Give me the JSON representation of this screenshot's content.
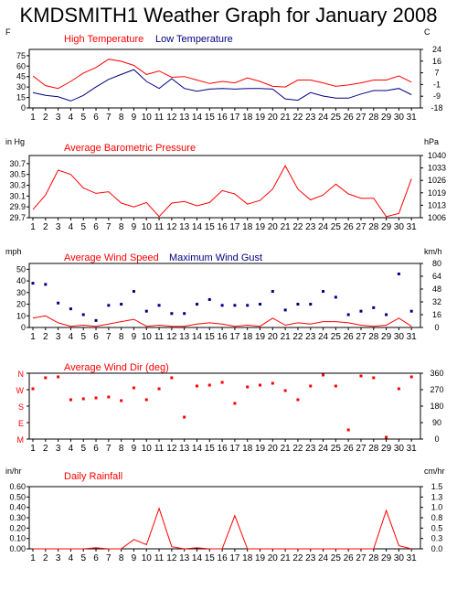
{
  "title": "KMDSMITH1 Weather Graph for January 2008",
  "x_days": [
    1,
    2,
    3,
    4,
    5,
    6,
    7,
    8,
    9,
    10,
    11,
    12,
    13,
    14,
    15,
    16,
    17,
    18,
    19,
    20,
    21,
    22,
    23,
    24,
    25,
    26,
    27,
    28,
    29,
    30,
    31
  ],
  "colors": {
    "red": "#ff0000",
    "blue": "#000080",
    "frame": "#000000"
  },
  "chart_data": [
    {
      "type": "line",
      "title": "",
      "xlabel": "",
      "ylabel": "F",
      "y2label": "C",
      "legend": [
        "High Temperature",
        "Low Temperature"
      ],
      "yticks": [
        "0",
        "15",
        "30",
        "45",
        "60",
        "75"
      ],
      "y2ticks": [
        "-18",
        "-9",
        "-1",
        "7",
        "16",
        "24"
      ],
      "ylim": [
        0,
        84
      ],
      "x": [
        1,
        2,
        3,
        4,
        5,
        6,
        7,
        8,
        9,
        10,
        11,
        12,
        13,
        14,
        15,
        16,
        17,
        18,
        19,
        20,
        21,
        22,
        23,
        24,
        25,
        26,
        27,
        28,
        29,
        30,
        31
      ],
      "series": [
        {
          "name": "High Temperature",
          "color": "#ff0000",
          "values": [
            46,
            32,
            28,
            38,
            50,
            58,
            70,
            67,
            61,
            48,
            53,
            44,
            45,
            40,
            35,
            38,
            36,
            43,
            38,
            31,
            30,
            40,
            40,
            36,
            31,
            33,
            36,
            40,
            40,
            46,
            37
          ]
        },
        {
          "name": "Low Temperature",
          "color": "#000080",
          "values": [
            22,
            18,
            16,
            10,
            18,
            30,
            41,
            48,
            55,
            38,
            28,
            42,
            28,
            24,
            27,
            28,
            27,
            28,
            28,
            27,
            13,
            11,
            22,
            17,
            14,
            14,
            20,
            25,
            25,
            28,
            19
          ]
        }
      ]
    },
    {
      "type": "line",
      "title": "",
      "ylabel": "in Hg",
      "y2label": "hPa",
      "legend": [
        "Average Barometric Pressure"
      ],
      "yticks": [
        "29.7",
        "29.9",
        "30.1",
        "30.3",
        "30.5",
        "30.7"
      ],
      "y2ticks": [
        "1006",
        "1013",
        "1019",
        "1026",
        "1033",
        "1040"
      ],
      "ylim": [
        29.7,
        30.85
      ],
      "x": [
        1,
        2,
        3,
        4,
        5,
        6,
        7,
        8,
        9,
        10,
        11,
        12,
        13,
        14,
        15,
        16,
        17,
        18,
        19,
        20,
        21,
        22,
        23,
        24,
        25,
        26,
        27,
        28,
        29,
        30,
        31
      ],
      "series": [
        {
          "name": "Average Barometric Pressure",
          "color": "#ff0000",
          "values": [
            29.85,
            30.12,
            30.58,
            30.5,
            30.25,
            30.15,
            30.18,
            29.97,
            29.9,
            29.98,
            29.72,
            29.97,
            30.0,
            29.92,
            29.98,
            30.2,
            30.14,
            29.95,
            30.02,
            30.23,
            30.66,
            30.23,
            30.03,
            30.12,
            30.32,
            30.14,
            30.06,
            30.06,
            29.72,
            29.78,
            30.42
          ]
        }
      ]
    },
    {
      "type": "line",
      "title": "",
      "ylabel": "mph",
      "y2label": "km/h",
      "legend": [
        "Average Wind Speed",
        "Maximum Wind Gust"
      ],
      "yticks": [
        "0",
        "10",
        "20",
        "30",
        "40",
        "50"
      ],
      "y2ticks": [
        "0",
        "16",
        "32",
        "48",
        "64",
        "80"
      ],
      "ylim": [
        0,
        55
      ],
      "x": [
        1,
        2,
        3,
        4,
        5,
        6,
        7,
        8,
        9,
        10,
        11,
        12,
        13,
        14,
        15,
        16,
        17,
        18,
        19,
        20,
        21,
        22,
        23,
        24,
        25,
        26,
        27,
        28,
        29,
        30,
        31
      ],
      "series": [
        {
          "name": "Average Wind Speed",
          "color": "#ff0000",
          "style": "line",
          "values": [
            8,
            10,
            4,
            1,
            2,
            1,
            3,
            5,
            7,
            1,
            2,
            1,
            1,
            3,
            4,
            3,
            1,
            2,
            1,
            8,
            2,
            4,
            3,
            5,
            5,
            4,
            2,
            1,
            2,
            8,
            1
          ]
        },
        {
          "name": "Maximum Wind Gust",
          "color": "#000080",
          "style": "markers",
          "values": [
            38,
            37,
            21,
            16,
            11,
            6,
            19,
            20,
            31,
            14,
            19,
            12,
            12,
            20,
            24,
            19,
            19,
            19,
            20,
            31,
            15,
            20,
            20,
            31,
            26,
            11,
            14,
            17,
            11,
            46,
            14
          ]
        }
      ]
    },
    {
      "type": "scatter",
      "title": "",
      "ylabel": "",
      "y2label": "",
      "legend": [
        "Average Wind Dir (deg)"
      ],
      "yticks": [
        "M",
        "E",
        "S",
        "W",
        "N"
      ],
      "y2ticks": [
        "0",
        "90",
        "180",
        "270",
        "360"
      ],
      "ylim": [
        0,
        360
      ],
      "x": [
        1,
        2,
        3,
        4,
        5,
        6,
        7,
        8,
        9,
        10,
        11,
        12,
        13,
        14,
        15,
        16,
        17,
        18,
        19,
        20,
        21,
        22,
        23,
        24,
        25,
        26,
        27,
        28,
        29,
        30,
        31
      ],
      "series": [
        {
          "name": "Average Wind Dir (deg)",
          "color": "#ff0000",
          "values": [
            275,
            335,
            340,
            215,
            220,
            225,
            230,
            210,
            280,
            215,
            275,
            335,
            120,
            290,
            295,
            310,
            195,
            285,
            295,
            305,
            265,
            215,
            290,
            350,
            290,
            50,
            345,
            335,
            10,
            275,
            340
          ]
        }
      ]
    },
    {
      "type": "line",
      "title": "",
      "ylabel": "in/hr",
      "y2label": "cm/hr",
      "legend": [
        "Daily Rainfall"
      ],
      "yticks": [
        "0.00",
        "0.10",
        "0.20",
        "0.30",
        "0.40",
        "0.50",
        "0.60"
      ],
      "y2ticks": [
        "0.0",
        "0.3",
        "0.5",
        "0.8",
        "1.0",
        "1.3",
        "1.5"
      ],
      "ylim": [
        0,
        0.6
      ],
      "x": [
        1,
        2,
        3,
        4,
        5,
        6,
        7,
        8,
        9,
        10,
        11,
        12,
        13,
        14,
        15,
        16,
        17,
        18,
        19,
        20,
        21,
        22,
        23,
        24,
        25,
        26,
        27,
        28,
        29,
        30,
        31
      ],
      "series": [
        {
          "name": "Daily Rainfall",
          "color": "#ff0000",
          "values": [
            0,
            0,
            0,
            0,
            0,
            0.01,
            0,
            0,
            0.09,
            0.04,
            0.39,
            0.02,
            0,
            0.01,
            0,
            0,
            0.32,
            0,
            0,
            0,
            0,
            0,
            0,
            0,
            0,
            0,
            0,
            0,
            0.37,
            0.03,
            0
          ]
        }
      ]
    }
  ]
}
